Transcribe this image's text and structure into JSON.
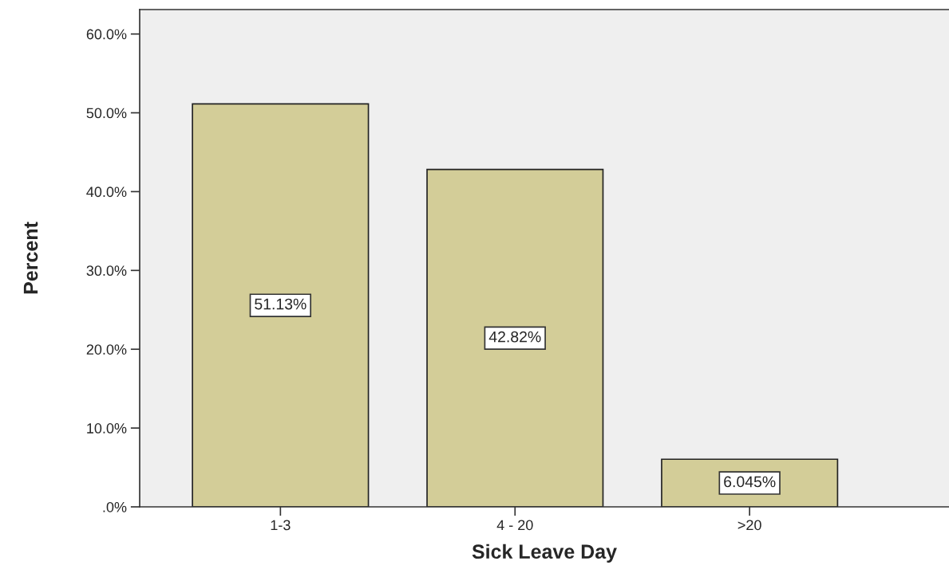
{
  "chart_data": {
    "type": "bar",
    "xlabel": "Sick Leave Day",
    "ylabel": "Percent",
    "categories": [
      "1-3",
      "4 - 20",
      ">20"
    ],
    "values": [
      51.13,
      42.82,
      6.045
    ],
    "value_labels": [
      "51.13%",
      "42.82%",
      "6.045%"
    ],
    "color": "#d3cd98",
    "ylim": [
      0,
      63.1
    ],
    "yticks": [
      {
        "value": 0,
        "label": ".0%"
      },
      {
        "value": 10,
        "label": "10.0%"
      },
      {
        "value": 20,
        "label": "20.0%"
      },
      {
        "value": 30,
        "label": "30.0%"
      },
      {
        "value": 40,
        "label": "40.0%"
      },
      {
        "value": 50,
        "label": "50.0%"
      },
      {
        "value": 60,
        "label": "60.0%"
      }
    ],
    "grid": false
  }
}
